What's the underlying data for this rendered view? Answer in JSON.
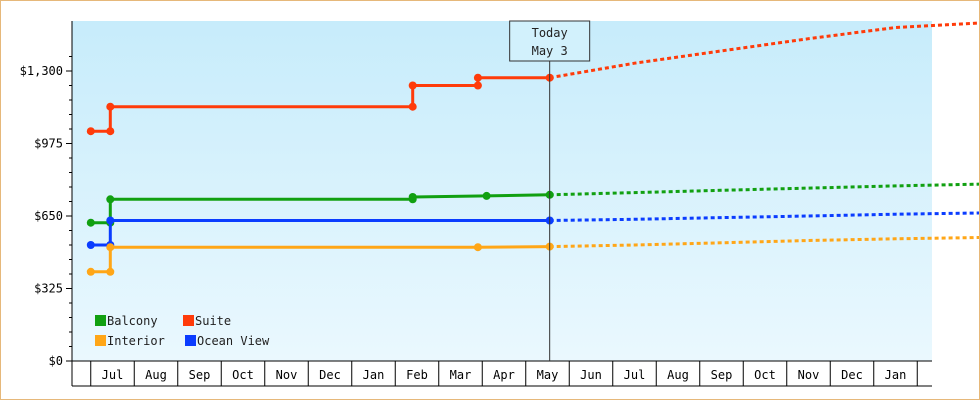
{
  "chart_data": {
    "type": "line",
    "title": "",
    "xlabel": "",
    "ylabel": "",
    "ylim": [
      0,
      1300
    ],
    "yticks": [
      {
        "value": 0,
        "label": "$0"
      },
      {
        "value": 325,
        "label": "$325"
      },
      {
        "value": 650,
        "label": "$650"
      },
      {
        "value": 975,
        "label": "$975"
      },
      {
        "value": 1300,
        "label": "$1,300"
      }
    ],
    "x_months": [
      "Jul",
      "Aug",
      "Sep",
      "Oct",
      "Nov",
      "Dec",
      "Jan",
      "Feb",
      "Mar",
      "Apr",
      "May",
      "Jun",
      "Jul",
      "Aug",
      "Sep",
      "Oct",
      "Nov",
      "Dec",
      "Jan"
    ],
    "today": {
      "line1": "Today",
      "line2": "May 3",
      "x": 10.05
    },
    "grid": false,
    "legend_placement": "bottom-left",
    "series": [
      {
        "name": "Suite",
        "color": "#ff3b0a",
        "actual": [
          [
            -0.5,
            1030
          ],
          [
            -0.05,
            1030
          ],
          [
            -0.05,
            1140
          ],
          [
            6.9,
            1140
          ],
          [
            6.9,
            1235
          ],
          [
            8.4,
            1235
          ],
          [
            8.4,
            1270
          ],
          [
            10.05,
            1270
          ]
        ],
        "forecast": [
          [
            10.05,
            1270
          ],
          [
            12,
            1335
          ],
          [
            14,
            1390
          ],
          [
            16,
            1445
          ],
          [
            18,
            1495
          ],
          [
            20.4,
            1520
          ]
        ]
      },
      {
        "name": "Balcony",
        "color": "#11a011",
        "actual": [
          [
            -0.5,
            620
          ],
          [
            -0.05,
            620
          ],
          [
            -0.05,
            725
          ],
          [
            6.9,
            725
          ],
          [
            6.9,
            735
          ],
          [
            8.6,
            740
          ],
          [
            10.05,
            745
          ]
        ],
        "forecast": [
          [
            10.05,
            745
          ],
          [
            12,
            755
          ],
          [
            14,
            765
          ],
          [
            16,
            775
          ],
          [
            18,
            785
          ],
          [
            20.4,
            795
          ]
        ]
      },
      {
        "name": "Ocean View",
        "color": "#0a3cff",
        "actual": [
          [
            -0.5,
            520
          ],
          [
            -0.05,
            520
          ],
          [
            -0.05,
            630
          ],
          [
            10.05,
            630
          ]
        ],
        "forecast": [
          [
            10.05,
            630
          ],
          [
            12,
            635
          ],
          [
            14,
            643
          ],
          [
            16,
            650
          ],
          [
            18,
            658
          ],
          [
            20.4,
            665
          ]
        ]
      },
      {
        "name": "Interior",
        "color": "#ffa617",
        "actual": [
          [
            -0.5,
            400
          ],
          [
            -0.05,
            400
          ],
          [
            -0.05,
            510
          ],
          [
            8.4,
            510
          ],
          [
            10.05,
            513
          ]
        ],
        "forecast": [
          [
            10.05,
            513
          ],
          [
            12,
            520
          ],
          [
            14,
            530
          ],
          [
            16,
            540
          ],
          [
            18,
            548
          ],
          [
            20.4,
            555
          ]
        ]
      }
    ],
    "legend": [
      {
        "name": "Balcony",
        "color": "#11a011"
      },
      {
        "name": "Suite",
        "color": "#ff3b0a"
      },
      {
        "name": "Interior",
        "color": "#ffa617"
      },
      {
        "name": "Ocean View",
        "color": "#0a3cff"
      }
    ]
  }
}
